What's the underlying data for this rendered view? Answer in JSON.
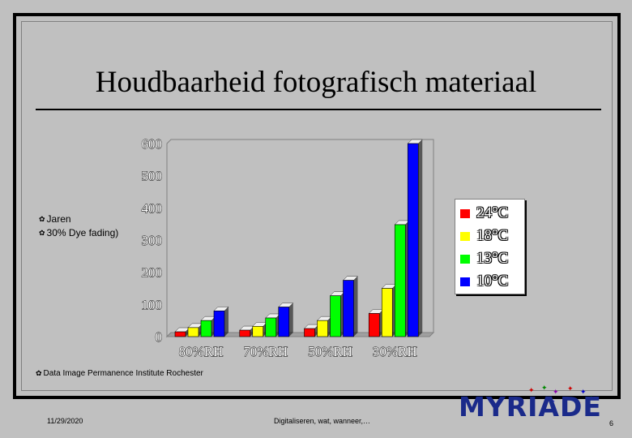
{
  "slide": {
    "title": "Houdbaarheid fotografisch materiaal",
    "bullets": [
      "Jaren",
      "30% Dye fading)"
    ],
    "source": "Data Image Permanence Institute Rochester",
    "footer_date": "11/29/2020",
    "footer_text": "Digitaliseren, wat, wanneer,…",
    "page_number": "6",
    "logo_text": "MYRIADE"
  },
  "chart_data": {
    "type": "bar",
    "categories": [
      "80%RH",
      "70%RH",
      "50%RH",
      "30%RH"
    ],
    "series": [
      {
        "name": "24°C",
        "color": "#ff0000",
        "values": [
          15,
          20,
          25,
          72
        ]
      },
      {
        "name": "18°C",
        "color": "#ffff00",
        "values": [
          28,
          32,
          50,
          150
        ]
      },
      {
        "name": "13°C",
        "color": "#00ff00",
        "values": [
          50,
          58,
          127,
          348
        ]
      },
      {
        "name": "10°C",
        "color": "#0000ff",
        "values": [
          80,
          92,
          175,
          600
        ]
      }
    ],
    "ylim": [
      0,
      600
    ],
    "yticks": [
      "0",
      "100",
      "200",
      "300",
      "400",
      "500",
      "600"
    ],
    "grid": false,
    "legend_position": "right"
  }
}
